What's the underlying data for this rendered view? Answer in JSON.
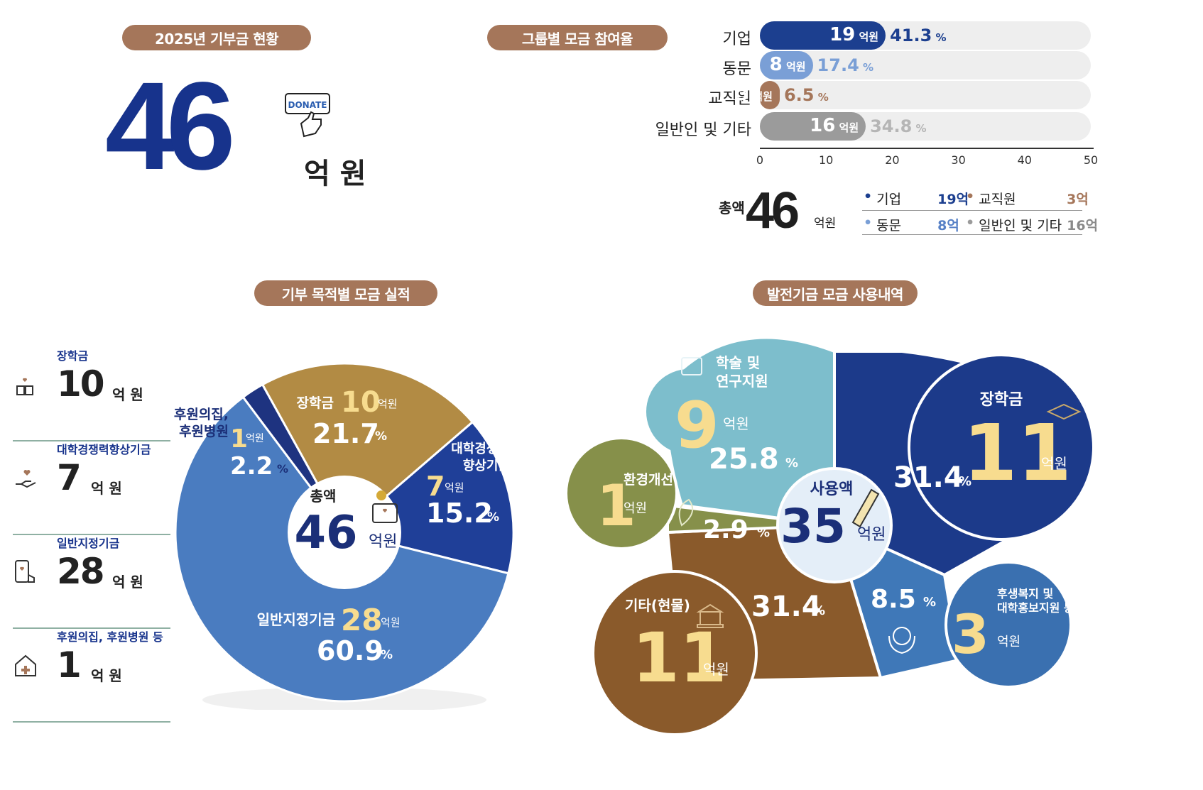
{
  "top_left": {
    "pill": "2025년 기부금 현황",
    "total": "46",
    "unit": "억 원",
    "donate_badge": "DONATE"
  },
  "group_chart": {
    "pill": "그룹별 모금 참여율",
    "unit": "억원",
    "axis_ticks": [
      "0",
      "10",
      "20",
      "30",
      "40",
      "50"
    ],
    "summary_label": "총액",
    "summary_total": "46",
    "summary_unit": "억원",
    "summary_items": [
      {
        "name": "기업",
        "value": "19억"
      },
      {
        "name": "교직원",
        "value": "3억"
      },
      {
        "name": "동문",
        "value": "8억"
      },
      {
        "name": "일반인 및 기타",
        "value": "16억"
      }
    ],
    "bars": [
      {
        "name": "기업",
        "value": "19",
        "pct": "41.3",
        "pct_unit": "%"
      },
      {
        "name": "동문",
        "value": "8",
        "pct": "17.4",
        "pct_unit": "%"
      },
      {
        "name": "교직원",
        "value": "3",
        "pct": "6.5",
        "pct_unit": "%"
      },
      {
        "name": "일반인 및 기타",
        "value": "16",
        "pct": "34.8",
        "pct_unit": "%"
      }
    ]
  },
  "purpose": {
    "pill": "기부 목적별 모금 실적",
    "center_label": "총액",
    "center_value": "46",
    "center_unit": "억원",
    "legend": [
      {
        "name": "장학금",
        "value": "10",
        "unit": "억 원"
      },
      {
        "name": "대학경쟁력향상기금",
        "value": "7",
        "unit": "억 원"
      },
      {
        "name": "일반지정기금",
        "value": "28",
        "unit": "억 원"
      },
      {
        "name": "후원의집, 후원병원 등",
        "value": "1",
        "unit": "억 원"
      }
    ],
    "labels": {
      "s_scholar_name": "장학금",
      "s_scholar_val": "10",
      "s_scholar_unit": "억원",
      "s_scholar_pct": "21.7",
      "s_comp_name1": "대학경쟁력",
      "s_comp_name2": "향상기금",
      "s_comp_val": "7",
      "s_comp_unit": "억원",
      "s_comp_pct": "15.2",
      "s_gen_name": "일반지정기금",
      "s_gen_val": "28",
      "s_gen_unit": "억원",
      "s_gen_pct": "60.9",
      "s_sup_name1": "후원의집,",
      "s_sup_name2": "후원병원",
      "s_sup_val": "1",
      "s_sup_unit": "억원",
      "s_sup_pct": "2.2",
      "pct_unit": "%"
    }
  },
  "usage": {
    "pill": "발전기금 모금 사용내역",
    "center_label": "사용액",
    "center_value": "35",
    "center_unit": "억원",
    "labels": {
      "research_name1": "학술 및",
      "research_name2": "연구지원",
      "research_val": "9",
      "research_unit": "억원",
      "research_pct": "25.8",
      "scholar_name": "장학금",
      "scholar_val": "11",
      "scholar_unit": "억원",
      "scholar_pct": "31.4",
      "env_name": "환경개선",
      "env_val": "1",
      "env_unit": "억원",
      "env_pct": "2.9",
      "etc_name": "기타(현물)",
      "etc_val": "11",
      "etc_unit": "억원",
      "etc_pct": "31.4",
      "welfare_name1": "후생복지 및",
      "welfare_name2": "대학홍보지원 등",
      "welfare_val": "3",
      "welfare_unit": "억원",
      "welfare_pct": "8.5",
      "pct_unit": "%"
    }
  },
  "chart_data": [
    {
      "type": "bar",
      "title": "그룹별 모금 참여율",
      "orientation": "horizontal",
      "categories": [
        "기업",
        "동문",
        "교직원",
        "일반인 및 기타"
      ],
      "values": [
        19,
        8,
        3,
        16
      ],
      "percent": [
        41.3,
        17.4,
        6.5,
        34.8
      ],
      "xlim": [
        0,
        50
      ],
      "colors": [
        "#1c3f8f",
        "#7a9fd6",
        "#a5765a",
        "#9b9b9b"
      ]
    },
    {
      "type": "pie",
      "title": "기부 목적별 모금 실적",
      "categories": [
        "장학금",
        "대학경쟁력 향상기금",
        "일반지정기금",
        "후원의집, 후원병원"
      ],
      "values": [
        10,
        7,
        28,
        1
      ],
      "percent": [
        21.7,
        15.2,
        60.9,
        2.2
      ],
      "colors": [
        "#b28b44",
        "#1f3f98",
        "#4a7cc0",
        "#1e3380"
      ]
    },
    {
      "type": "pie",
      "title": "발전기금 모금 사용내역",
      "categories": [
        "장학금",
        "후생복지 및 대학홍보지원 등",
        "기타(현물)",
        "환경개선",
        "학술 및 연구지원"
      ],
      "values": [
        11,
        3,
        11,
        1,
        9
      ],
      "percent": [
        31.4,
        8.5,
        31.4,
        2.9,
        25.8
      ],
      "colors": [
        "#1c3a8a",
        "#3f78b8",
        "#8a5a2b",
        "#86904a",
        "#7dbecc"
      ]
    }
  ]
}
